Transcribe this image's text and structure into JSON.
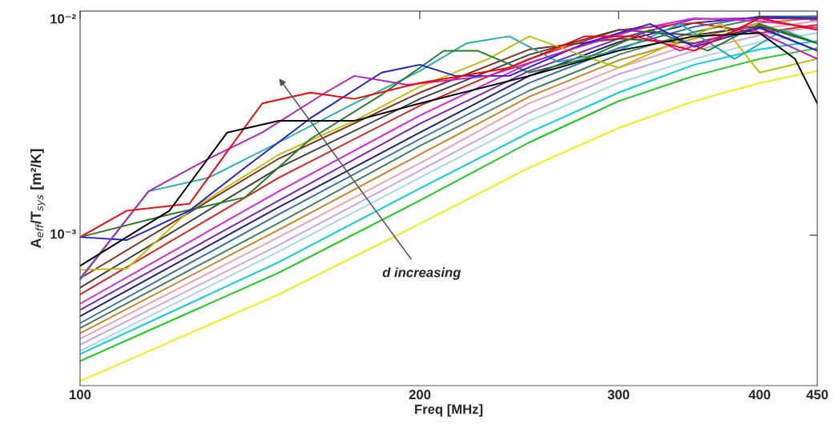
{
  "chart_data": {
    "type": "line",
    "xlabel": "Freq [MHz]",
    "ylabel": "A$_{eff}$/T$_{sys}$ [m²/K]",
    "log": "xy",
    "grid": false,
    "xlim": [
      100,
      450
    ],
    "xticks": [
      100,
      200,
      300,
      400,
      450
    ],
    "ylim": [
      0.0002,
      0.011
    ],
    "yticks": [
      {
        "value": 0.001,
        "label": "10⁻³"
      },
      {
        "value": 0.01,
        "label": "10⁻²"
      }
    ],
    "annotations": [
      "d increasing"
    ],
    "series": [
      {
        "color": "#f0f000",
        "x": [
          100,
          150,
          200,
          250,
          300,
          350,
          400,
          450
        ],
        "values": [
          0.00021,
          0.00053,
          0.00113,
          0.00206,
          0.00315,
          0.0042,
          0.0051,
          0.0058
        ]
      },
      {
        "color": "#10d010",
        "x": [
          100,
          150,
          200,
          250,
          300,
          350,
          400,
          450
        ],
        "values": [
          0.00026,
          0.00067,
          0.00145,
          0.0027,
          0.0042,
          0.0055,
          0.0066,
          0.0074
        ]
      },
      {
        "color": "#00d0e0",
        "x": [
          100,
          150,
          200,
          250,
          300,
          350,
          400,
          450
        ],
        "values": [
          0.00028,
          0.00075,
          0.00165,
          0.003,
          0.0046,
          0.0062,
          0.0073,
          0.008
        ]
      },
      {
        "color": "#a0d8f0",
        "x": [
          100,
          150,
          200,
          250,
          300,
          350,
          400,
          450
        ],
        "values": [
          0.00029,
          0.00084,
          0.00185,
          0.0034,
          0.0051,
          0.0066,
          0.0079,
          0.0087
        ]
      },
      {
        "color": "#c8a0f0",
        "x": [
          100,
          150,
          200,
          250,
          300,
          350,
          400,
          450
        ],
        "values": [
          0.00031,
          0.0009,
          0.002,
          0.0037,
          0.0056,
          0.0072,
          0.0085,
          0.0093
        ]
      },
      {
        "color": "#f0a0b0",
        "x": [
          100,
          150,
          200,
          250,
          300,
          350,
          400,
          450
        ],
        "values": [
          0.00033,
          0.00098,
          0.00216,
          0.0041,
          0.006,
          0.0078,
          0.0091,
          0.0099
        ]
      },
      {
        "color": "#d08020",
        "x": [
          100,
          150,
          200,
          250,
          300,
          350,
          400,
          450
        ],
        "values": [
          0.00035,
          0.00106,
          0.00237,
          0.0044,
          0.0065,
          0.0082,
          0.0097,
          0.0102
        ]
      },
      {
        "color": "#408060",
        "x": [
          100,
          150,
          200,
          250,
          300,
          350,
          400,
          450
        ],
        "values": [
          0.00037,
          0.00114,
          0.0026,
          0.0047,
          0.0069,
          0.0088,
          0.0102,
          0.0104
        ]
      },
      {
        "color": "#3070b0",
        "x": [
          100,
          150,
          200,
          250,
          300,
          350,
          400,
          450
        ],
        "values": [
          0.00039,
          0.00125,
          0.0028,
          0.0051,
          0.0074,
          0.0093,
          0.0104,
          0.0104
        ]
      },
      {
        "color": "#202080",
        "x": [
          100,
          150,
          200,
          250,
          300,
          350,
          400,
          450
        ],
        "values": [
          0.00042,
          0.00135,
          0.003,
          0.0055,
          0.0079,
          0.0097,
          0.0103,
          0.0102
        ]
      },
      {
        "color": "#8020c0",
        "x": [
          100,
          150,
          200,
          250,
          300,
          350,
          400,
          450
        ],
        "values": [
          0.00045,
          0.00145,
          0.0033,
          0.0058,
          0.0082,
          0.0101,
          0.0102,
          0.0101
        ]
      },
      {
        "color": "#e020e0",
        "x": [
          100,
          150,
          200,
          250,
          300,
          350,
          400,
          450
        ],
        "values": [
          0.00048,
          0.0016,
          0.0036,
          0.0063,
          0.0087,
          0.0102,
          0.0099,
          0.0092
        ]
      },
      {
        "color": "#e02020",
        "x": [
          100,
          150,
          200,
          250,
          300,
          350,
          400,
          450
        ],
        "values": [
          0.00053,
          0.00185,
          0.004,
          0.0066,
          0.009,
          0.0097,
          0.0087,
          0.0095
        ]
      },
      {
        "color": "#404040",
        "x": [
          100,
          150,
          200,
          250,
          300,
          350,
          400,
          450
        ],
        "values": [
          0.00057,
          0.00206,
          0.0043,
          0.0069,
          0.009,
          0.0085,
          0.0094,
          0.0078
        ]
      },
      {
        "color": "#803020",
        "x": [
          100,
          150,
          200,
          250,
          300,
          350,
          400,
          450
        ],
        "values": [
          0.00063,
          0.00227,
          0.0046,
          0.0073,
          0.0082,
          0.0078,
          0.0093,
          0.0072
        ]
      },
      {
        "color": "#c0c000",
        "x": [
          100,
          110,
          125,
          150,
          175,
          200,
          230,
          250,
          280,
          300,
          330,
          370,
          400,
          450
        ],
        "values": [
          0.00069,
          0.0007,
          0.0013,
          0.00237,
          0.0034,
          0.0049,
          0.0066,
          0.0084,
          0.0068,
          0.006,
          0.0075,
          0.0096,
          0.0057,
          0.0066
        ]
      },
      {
        "color": "#20b0b0",
        "x": [
          100,
          115,
          130,
          150,
          175,
          200,
          220,
          240,
          265,
          300,
          340,
          380,
          420,
          450
        ],
        "values": [
          0.00062,
          0.0016,
          0.00185,
          0.0027,
          0.0041,
          0.0058,
          0.0078,
          0.0084,
          0.0064,
          0.0072,
          0.0096,
          0.0066,
          0.009,
          0.0078
        ]
      },
      {
        "color": "#208020",
        "x": [
          100,
          120,
          140,
          160,
          185,
          210,
          225,
          250,
          280,
          320,
          360,
          400,
          450
        ],
        "values": [
          0.00098,
          0.00125,
          0.0015,
          0.0028,
          0.0045,
          0.0072,
          0.0072,
          0.0057,
          0.0066,
          0.009,
          0.0072,
          0.0096,
          0.0078
        ]
      },
      {
        "color": "#2020e0",
        "x": [
          100,
          110,
          125,
          140,
          160,
          185,
          200,
          215,
          240,
          280,
          320,
          350,
          400,
          450
        ],
        "values": [
          0.00098,
          0.00095,
          0.0013,
          0.00206,
          0.0035,
          0.0057,
          0.0062,
          0.0055,
          0.0055,
          0.0078,
          0.0096,
          0.0075,
          0.0092,
          0.0072
        ]
      },
      {
        "color": "#c020c0",
        "x": [
          100,
          115,
          130,
          145,
          165,
          175,
          195,
          230,
          270,
          310,
          340,
          390,
          450
        ],
        "values": [
          0.00063,
          0.0016,
          0.00227,
          0.003,
          0.0046,
          0.0055,
          0.005,
          0.0055,
          0.0072,
          0.009,
          0.0072,
          0.0093,
          0.0066
        ]
      },
      {
        "color": "#ff0000",
        "x": [
          100,
          110,
          125,
          145,
          160,
          175,
          200,
          240,
          280,
          310,
          350,
          400,
          450
        ],
        "values": [
          0.00098,
          0.0013,
          0.0014,
          0.0041,
          0.0046,
          0.0043,
          0.0051,
          0.006,
          0.0084,
          0.0084,
          0.0072,
          0.0102,
          0.009
        ]
      },
      {
        "color": "#000000",
        "x": [
          100,
          120,
          135,
          150,
          175,
          200,
          250,
          300,
          350,
          400,
          430,
          450
        ],
        "values": [
          0.00072,
          0.0013,
          0.003,
          0.0034,
          0.0034,
          0.0041,
          0.0055,
          0.0072,
          0.0084,
          0.0087,
          0.0066,
          0.0041
        ]
      }
    ]
  }
}
